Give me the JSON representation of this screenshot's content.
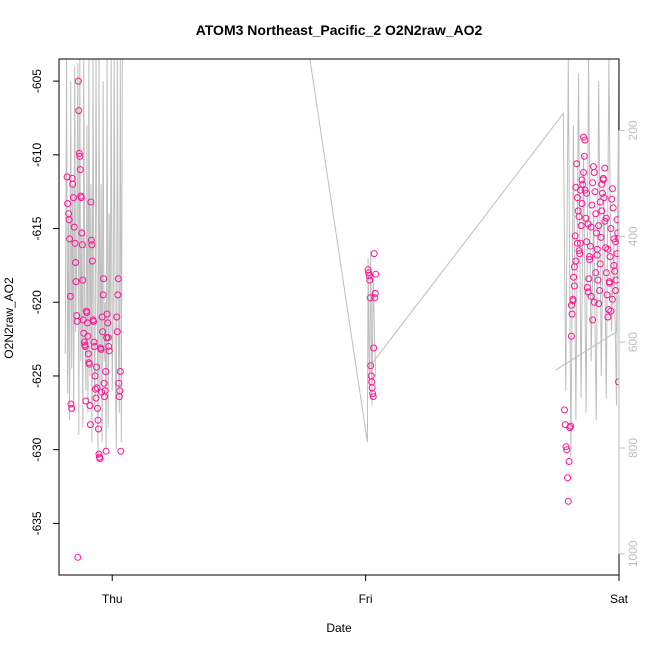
{
  "chart_data": {
    "type": "scatter",
    "title": "ATOM3 Northeast_Pacific_2 O2N2raw_AO2",
    "xlabel": "Date",
    "ylabel": "O2N2raw_AO2",
    "x_ticks": [
      "Thu",
      "Fri",
      "Sat"
    ],
    "x_tick_values": [
      0,
      1,
      2
    ],
    "xlim": [
      -0.21,
      2.0
    ],
    "ylim": [
      -638.5,
      -603.5
    ],
    "y_ticks": [
      -605,
      -610,
      -615,
      -620,
      -625,
      -630,
      -635
    ],
    "right_axis": {
      "ticks": [
        200,
        400,
        600,
        800,
        1000
      ],
      "lim": [
        65,
        1040
      ],
      "color": "#bebebe"
    },
    "grid": false,
    "colors": {
      "points": "#ff1493",
      "line": "#bebebe",
      "axis": "#000000"
    },
    "series": [
      {
        "kind": "points",
        "x": [
          -0.178,
          -0.176,
          -0.172,
          -0.17,
          -0.168,
          -0.165,
          -0.163,
          -0.16,
          -0.158,
          -0.156,
          -0.153,
          -0.15,
          -0.147,
          -0.145,
          -0.143,
          -0.14,
          -0.138,
          -0.136,
          -0.134,
          -0.132,
          -0.13,
          -0.128,
          -0.126,
          -0.124,
          -0.122,
          -0.12,
          -0.118,
          -0.116,
          -0.114,
          -0.112,
          -0.11,
          -0.108,
          -0.106,
          -0.104,
          -0.102,
          -0.1,
          -0.098,
          -0.096,
          -0.094,
          -0.092,
          -0.09,
          -0.088,
          -0.086,
          -0.084,
          -0.082,
          -0.08,
          -0.078,
          -0.076,
          -0.074,
          -0.072,
          -0.07,
          -0.068,
          -0.066,
          -0.064,
          -0.062,
          -0.06,
          -0.058,
          -0.056,
          -0.054,
          -0.052,
          -0.05,
          -0.048,
          -0.046,
          -0.044,
          -0.042,
          -0.04,
          -0.038,
          -0.036,
          -0.034,
          -0.032,
          -0.03,
          -0.028,
          -0.026,
          -0.024,
          -0.022,
          -0.02,
          -0.018,
          -0.016,
          -0.014,
          -0.012,
          0.018,
          0.02,
          0.022,
          0.024,
          0.026,
          0.028,
          0.03,
          0.032,
          0.034
        ],
        "y": [
          -611.5,
          -613.3,
          -614.0,
          -614.4,
          -615.7,
          -619.6,
          -626.9,
          -627.2,
          -611.6,
          -612.0,
          -612.9,
          -614.9,
          -616.0,
          -617.3,
          -618.6,
          -620.9,
          -621.3,
          -637.3,
          -605.0,
          -607.0,
          -609.9,
          -610.1,
          -611.0,
          -612.8,
          -612.9,
          -615.3,
          -616.1,
          -618.5,
          -621.2,
          -622.1,
          -622.7,
          -622.9,
          -623.0,
          -626.7,
          -620.6,
          -620.7,
          -621.4,
          -622.3,
          -623.5,
          -624.1,
          -624.2,
          -627.0,
          -628.3,
          -613.2,
          -615.8,
          -616.1,
          -617.2,
          -621.2,
          -621.3,
          -622.7,
          -623.0,
          -625.0,
          -625.9,
          -626.5,
          -624.4,
          -625.8,
          -627.2,
          -628.0,
          -628.6,
          -630.3,
          -630.5,
          -630.6,
          -623.1,
          -623.2,
          -626.1,
          -621.0,
          -622.0,
          -619.5,
          -618.4,
          -625.5,
          -626.4,
          -626.0,
          -624.7,
          -630.1,
          -622.4,
          -620.8,
          -621.4,
          -622.4,
          -623.0,
          -623.3,
          -621.0,
          -622.0,
          -619.5,
          -618.4,
          -625.5,
          -626.4,
          -626.0,
          -624.7,
          -630.1
        ]
      },
      {
        "kind": "points",
        "x": [
          1.01,
          1.012,
          1.014,
          1.016,
          1.018,
          1.02,
          1.022,
          1.024,
          1.026,
          1.028,
          1.03,
          1.032,
          1.034,
          1.036,
          1.038,
          1.04
        ],
        "y": [
          -617.8,
          -618.0,
          -618.2,
          -618.5,
          -619.7,
          -624.3,
          -625.0,
          -625.4,
          -625.8,
          -626.2,
          -626.4,
          -623.1,
          -616.7,
          -619.7,
          -619.4,
          -618.1
        ]
      },
      {
        "kind": "points",
        "x": [
          1.785,
          1.788,
          1.791,
          1.794,
          1.797,
          1.8,
          1.803,
          1.806,
          1.809,
          1.812,
          1.815,
          1.818,
          1.821,
          1.824,
          1.827,
          1.83,
          1.833,
          1.836,
          1.839,
          1.842,
          1.845,
          1.848,
          1.851,
          1.854,
          1.857,
          1.86,
          1.863,
          1.866,
          1.869,
          1.872,
          1.875,
          1.878,
          1.881,
          1.884,
          1.887,
          1.89,
          1.893,
          1.896,
          1.899,
          1.902,
          1.905,
          1.908,
          1.911,
          1.914,
          1.917,
          1.92,
          1.923,
          1.926,
          1.929,
          1.932,
          1.935,
          1.938,
          1.941,
          1.944,
          1.947,
          1.95,
          1.953,
          1.956,
          1.959,
          1.962,
          1.965,
          1.968,
          1.971,
          1.974,
          1.977,
          1.98,
          1.983,
          1.986,
          1.989,
          1.992,
          1.995,
          1.998,
          1.812,
          1.818,
          1.824,
          1.83,
          1.836,
          1.842,
          1.848,
          1.854,
          1.86,
          1.866,
          1.872,
          1.878,
          1.884,
          1.89,
          1.896,
          1.902,
          1.908,
          1.914,
          1.92,
          1.926,
          1.932,
          1.938,
          1.944,
          1.95,
          1.956,
          1.962,
          1.968,
          1.974,
          1.98,
          1.986,
          1.992,
          1.998
        ],
        "y": [
          -627.3,
          -628.3,
          -629.8,
          -630.0,
          -631.9,
          -633.5,
          -630.8,
          -628.5,
          -628.4,
          -622.3,
          -620.8,
          -619.9,
          -618.3,
          -617.6,
          -615.5,
          -612.2,
          -610.6,
          -612.9,
          -613.8,
          -616.5,
          -616.7,
          -616.0,
          -614.8,
          -613.3,
          -612.0,
          -611.2,
          -610.1,
          -612.4,
          -614.3,
          -615.9,
          -619.0,
          -619.3,
          -618.4,
          -617.1,
          -616.2,
          -614.9,
          -613.4,
          -611.9,
          -610.8,
          -611.2,
          -612.5,
          -614.0,
          -615.3,
          -616.8,
          -618.5,
          -620.1,
          -619.2,
          -617.4,
          -615.6,
          -613.8,
          -612.6,
          -611.7,
          -612.9,
          -614.5,
          -616.3,
          -618.0,
          -619.5,
          -621.0,
          -620.5,
          -618.6,
          -616.9,
          -615.0,
          -613.0,
          -612.3,
          -613.6,
          -615.7,
          -617.9,
          -619.2,
          -618.5,
          -616.7,
          -615.3,
          -625.4,
          -620.2,
          -619.8,
          -618.9,
          -617.2,
          -616.0,
          -614.2,
          -612.4,
          -611.7,
          -608.8,
          -609.0,
          -612.6,
          -614.7,
          -616.9,
          -619.6,
          -621.2,
          -620.0,
          -618.0,
          -616.4,
          -614.8,
          -613.2,
          -612.0,
          -611.6,
          -610.9,
          -614.3,
          -616.4,
          -618.7,
          -620.6,
          -619.8,
          -617.5,
          -615.9,
          -614.4,
          -615.7
        ]
      },
      {
        "kind": "line",
        "x": [
          -0.185,
          -0.18,
          -0.176,
          -0.172,
          -0.168,
          -0.164,
          -0.16,
          -0.156,
          -0.152,
          -0.148,
          -0.144,
          -0.14,
          -0.136,
          -0.132,
          -0.128,
          -0.124,
          -0.12,
          -0.116,
          -0.112,
          -0.108,
          -0.104,
          -0.1,
          -0.096,
          -0.092,
          -0.088,
          -0.084,
          -0.08,
          -0.076,
          -0.072,
          -0.068,
          -0.064,
          -0.06,
          -0.056,
          -0.052,
          -0.048,
          -0.044,
          -0.04,
          -0.036,
          -0.032,
          -0.028,
          -0.024,
          -0.02,
          -0.016,
          -0.012,
          -0.008,
          -0.004,
          0.0,
          0.004,
          0.008,
          0.012,
          0.016,
          0.02,
          0.024,
          0.028,
          0.032,
          0.036,
          0.04,
          0.78,
          1.007,
          1.01,
          1.015,
          1.02,
          1.025,
          1.03,
          1.035,
          1.04,
          1.01,
          1.78,
          1.79,
          1.8,
          1.81,
          1.82,
          1.83,
          1.84,
          1.85,
          1.86,
          1.87,
          1.88,
          1.89,
          1.9,
          1.91,
          1.92,
          1.93,
          1.94,
          1.95,
          1.96,
          1.97,
          1.98,
          1.99,
          2.0,
          1.99,
          1.75
        ],
        "y": [
          -623.5,
          -603.5,
          -626.2,
          -614.0,
          -628.0,
          -605.0,
          -624.5,
          -612.0,
          -627.5,
          -604.0,
          -622.0,
          -617.0,
          -603.8,
          -629.0,
          -603.5,
          -624.0,
          -615.0,
          -628.5,
          -603.5,
          -621.5,
          -626.0,
          -608.0,
          -627.5,
          -603.5,
          -625.0,
          -612.0,
          -629.5,
          -603.5,
          -623.0,
          -627.0,
          -603.5,
          -618.0,
          -630.5,
          -603.5,
          -626.0,
          -612.0,
          -629.5,
          -605.0,
          -624.0,
          -620.0,
          -630.0,
          -603.5,
          -628.5,
          -614.0,
          -622.5,
          -603.5,
          -626.0,
          -621.0,
          -603.5,
          -624.8,
          -630.0,
          -603.5,
          -622.0,
          -627.5,
          -603.5,
          -629.5,
          -603.5,
          -603.5,
          -629.5,
          -617.0,
          -626.0,
          -616.5,
          -627.0,
          -618.0,
          -622.5,
          -625.0,
          -624.5,
          -607.2,
          -626.0,
          -603.5,
          -630.5,
          -608.0,
          -628.0,
          -604.5,
          -626.5,
          -610.0,
          -627.5,
          -603.5,
          -624.0,
          -614.0,
          -628.0,
          -605.0,
          -625.0,
          -612.0,
          -626.5,
          -603.5,
          -622.0,
          -616.0,
          -627.0,
          -603.5,
          -622.0,
          -624.6
        ]
      }
    ]
  }
}
